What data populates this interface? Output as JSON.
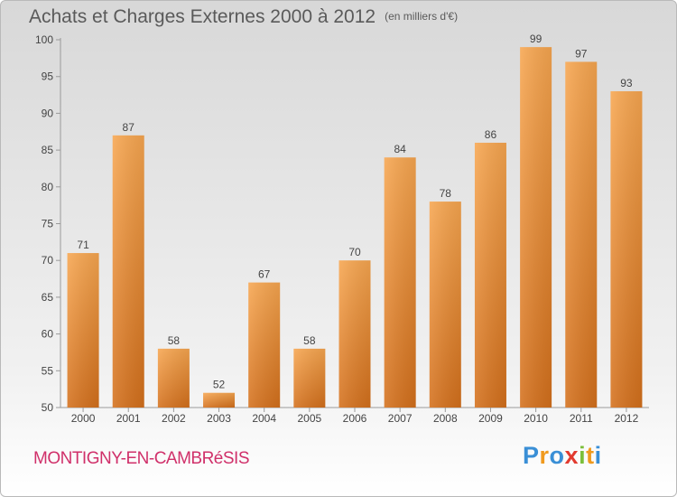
{
  "header": {
    "title": "Achats et Charges Externes 2000 à 2012",
    "unit": "(en milliers d'€)"
  },
  "footer": {
    "commune": "MONTIGNY-EN-CAMBRéSIS"
  },
  "logo": {
    "letters": [
      "P",
      "r",
      "o",
      "x",
      "i",
      "t",
      "i"
    ],
    "colors": [
      "#3a8fd6",
      "#f09a1e",
      "#3a8fd6",
      "#e23a2f",
      "#7bbf3a",
      "#f09a1e",
      "#3a8fd6"
    ]
  },
  "chart_data": {
    "type": "bar",
    "title": "Achats et Charges Externes 2000 à 2012",
    "xlabel": "",
    "ylabel": "",
    "categories": [
      "2000",
      "2001",
      "2002",
      "2003",
      "2004",
      "2005",
      "2006",
      "2007",
      "2008",
      "2009",
      "2010",
      "2011",
      "2012"
    ],
    "values": [
      71,
      87,
      58,
      52,
      67,
      58,
      70,
      84,
      78,
      86,
      99,
      97,
      93
    ],
    "ylim": [
      50,
      100
    ],
    "yticks": [
      50,
      55,
      60,
      65,
      70,
      75,
      80,
      85,
      90,
      95,
      100
    ],
    "grid": false,
    "bar_color_top": "#f7a650",
    "bar_color_bottom": "#d4701c"
  }
}
